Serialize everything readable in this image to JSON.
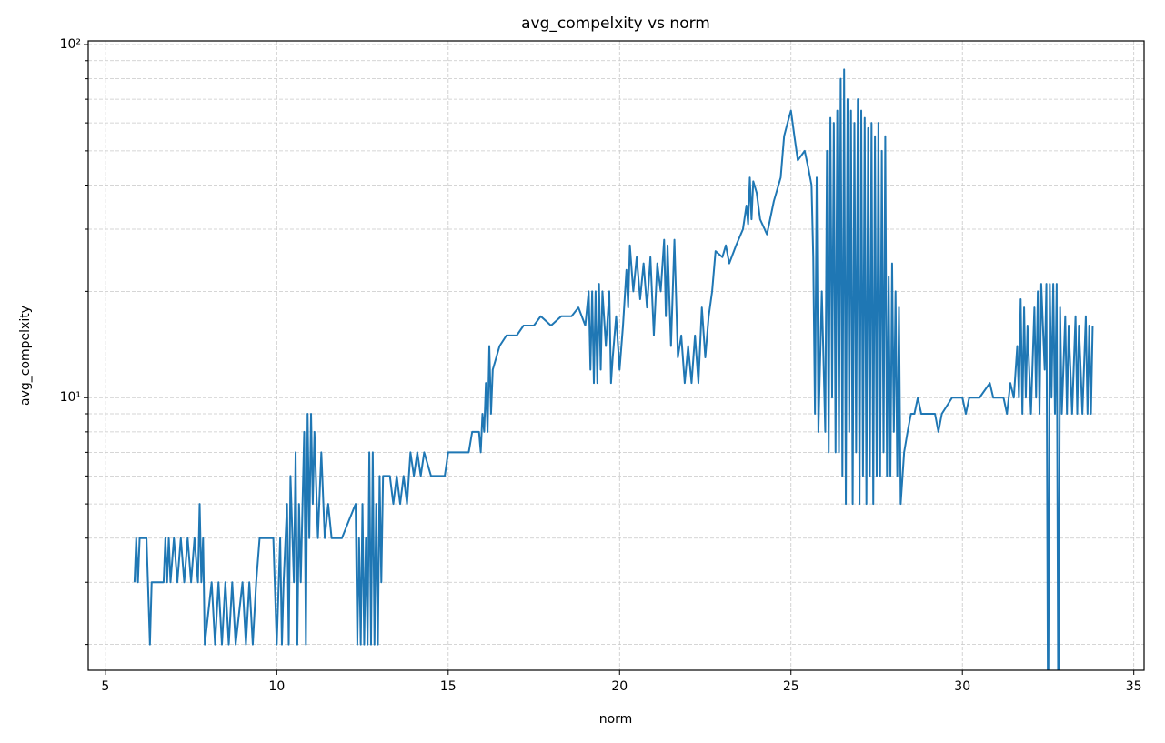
{
  "chart_data": {
    "type": "line",
    "title": "avg_compelxity vs norm",
    "x_label": "norm",
    "y_label": "avg_compelxity",
    "log_y": true,
    "grid": true,
    "xlim": [
      4.5,
      35.3
    ],
    "xticks": [
      5,
      10,
      15,
      20,
      25,
      30,
      35
    ],
    "ylim": [
      1.69,
      102.4
    ],
    "yticks": [
      {
        "value": 10,
        "label": "10¹"
      },
      {
        "value": 100,
        "label": "10²"
      }
    ],
    "minor_yticks": [
      2,
      3,
      4,
      5,
      6,
      7,
      8,
      9,
      20,
      30,
      40,
      50,
      60,
      70,
      80,
      90
    ],
    "series": [
      {
        "color": "#1f77b4",
        "x": [
          5.85,
          5.9,
          5.95,
          6.0,
          6.2,
          6.3,
          6.35,
          6.7,
          6.75,
          6.8,
          6.85,
          6.9,
          7.0,
          7.1,
          7.2,
          7.3,
          7.4,
          7.5,
          7.6,
          7.7,
          7.75,
          7.8,
          7.85,
          7.9,
          8.1,
          8.2,
          8.3,
          8.4,
          8.5,
          8.6,
          8.7,
          8.8,
          9.0,
          9.1,
          9.2,
          9.3,
          9.4,
          9.5,
          9.6,
          9.9,
          10.0,
          10.1,
          10.15,
          10.2,
          10.3,
          10.35,
          10.4,
          10.5,
          10.55,
          10.6,
          10.65,
          10.7,
          10.8,
          10.85,
          10.9,
          10.95,
          11.0,
          11.05,
          11.1,
          11.2,
          11.3,
          11.4,
          11.5,
          11.6,
          11.9,
          12.3,
          12.35,
          12.4,
          12.45,
          12.5,
          12.55,
          12.6,
          12.65,
          12.7,
          12.75,
          12.8,
          12.85,
          12.9,
          12.95,
          13.0,
          13.05,
          13.1,
          13.3,
          13.4,
          13.5,
          13.6,
          13.7,
          13.8,
          13.9,
          14.0,
          14.1,
          14.2,
          14.3,
          14.5,
          14.9,
          15.0,
          15.6,
          15.7,
          15.9,
          15.95,
          16.0,
          16.05,
          16.1,
          16.15,
          16.2,
          16.25,
          16.3,
          16.5,
          16.7,
          17.0,
          17.2,
          17.5,
          17.7,
          18.0,
          18.3,
          18.6,
          18.8,
          19.0,
          19.1,
          19.15,
          19.2,
          19.25,
          19.3,
          19.35,
          19.4,
          19.45,
          19.5,
          19.6,
          19.7,
          19.75,
          19.8,
          19.9,
          20.0,
          20.1,
          20.2,
          20.25,
          20.3,
          20.4,
          20.5,
          20.6,
          20.7,
          20.8,
          20.9,
          21.0,
          21.1,
          21.2,
          21.3,
          21.35,
          21.4,
          21.5,
          21.6,
          21.7,
          21.8,
          21.9,
          22.0,
          22.1,
          22.2,
          22.3,
          22.4,
          22.5,
          22.6,
          22.7,
          22.8,
          23.0,
          23.1,
          23.2,
          23.4,
          23.6,
          23.7,
          23.75,
          23.8,
          23.85,
          23.9,
          24.0,
          24.1,
          24.3,
          24.5,
          24.7,
          24.8,
          24.9,
          25.0,
          25.1,
          25.2,
          25.4,
          25.5,
          25.6,
          25.65,
          25.7,
          25.75,
          25.8,
          25.9,
          26.0,
          26.05,
          26.1,
          26.15,
          26.2,
          26.25,
          26.3,
          26.35,
          26.4,
          26.45,
          26.5,
          26.55,
          26.6,
          26.65,
          26.7,
          26.75,
          26.8,
          26.85,
          26.9,
          26.95,
          27.0,
          27.05,
          27.1,
          27.15,
          27.2,
          27.25,
          27.3,
          27.35,
          27.4,
          27.45,
          27.5,
          27.55,
          27.6,
          27.65,
          27.7,
          27.75,
          27.8,
          27.85,
          27.9,
          27.95,
          28.0,
          28.05,
          28.1,
          28.15,
          28.2,
          28.3,
          28.4,
          28.5,
          28.6,
          28.7,
          28.8,
          29.2,
          29.3,
          29.4,
          29.7,
          30.0,
          30.1,
          30.2,
          30.5,
          30.8,
          30.9,
          31.2,
          31.3,
          31.4,
          31.5,
          31.6,
          31.65,
          31.7,
          31.75,
          31.8,
          31.85,
          31.9,
          32.0,
          32.1,
          32.15,
          32.2,
          32.25,
          32.3,
          32.4,
          32.45,
          32.5,
          32.55,
          32.6,
          32.65,
          32.7,
          32.75,
          32.8,
          32.85,
          32.9,
          33.0,
          33.05,
          33.1,
          33.2,
          33.3,
          33.35,
          33.4,
          33.5,
          33.6,
          33.65,
          33.7,
          33.75,
          33.8
        ],
        "values": [
          3,
          4,
          3,
          4,
          4,
          2,
          3,
          3,
          4,
          3,
          4,
          3,
          4,
          3,
          4,
          3,
          4,
          3,
          4,
          3,
          5,
          3,
          4,
          2,
          3,
          2,
          3,
          2,
          3,
          2,
          3,
          2,
          3,
          2,
          3,
          2,
          3,
          4,
          4,
          4,
          2,
          4,
          2,
          3,
          5,
          2,
          6,
          3,
          7,
          2,
          5,
          3,
          8,
          2,
          9,
          4,
          9,
          5,
          8,
          4,
          7,
          4,
          5,
          4,
          4,
          5,
          2,
          4,
          2,
          5,
          2,
          4,
          2,
          7,
          2,
          7,
          2,
          5,
          2,
          6,
          3,
          6,
          6,
          5,
          6,
          5,
          6,
          5,
          7,
          6,
          7,
          6,
          7,
          6,
          6,
          7,
          7,
          8,
          8,
          7,
          9,
          8,
          11,
          8,
          14,
          9,
          12,
          14,
          15,
          15,
          16,
          16,
          17,
          16,
          17,
          17,
          18,
          16,
          20,
          12,
          20,
          11,
          20,
          11,
          21,
          12,
          20,
          14,
          20,
          11,
          13,
          17,
          12,
          16,
          23,
          18,
          27,
          20,
          25,
          19,
          24,
          18,
          25,
          15,
          24,
          20,
          28,
          17,
          27,
          14,
          28,
          13,
          15,
          11,
          14,
          11,
          15,
          11,
          18,
          13,
          17,
          20,
          26,
          25,
          27,
          24,
          27,
          30,
          35,
          31,
          42,
          32,
          41,
          38,
          32,
          29,
          36,
          42,
          55,
          60,
          65,
          55,
          47,
          50,
          45,
          40,
          25,
          9,
          42,
          8,
          20,
          8,
          50,
          7,
          62,
          10,
          60,
          7,
          65,
          7,
          80,
          6,
          85,
          5,
          70,
          8,
          65,
          5,
          60,
          7,
          70,
          5,
          65,
          6,
          62,
          5,
          58,
          6,
          60,
          5,
          55,
          6,
          60,
          6,
          50,
          7,
          55,
          6,
          22,
          6,
          24,
          8,
          20,
          6,
          18,
          5,
          7,
          8,
          9,
          9,
          10,
          9,
          9,
          8,
          9,
          10,
          10,
          9,
          10,
          10,
          11,
          10,
          10,
          9,
          11,
          10,
          14,
          10,
          19,
          9,
          18,
          10,
          16,
          9,
          18,
          10,
          20,
          9,
          21,
          12,
          21,
          1,
          21,
          10,
          21,
          9,
          21,
          1,
          18,
          9,
          17,
          9,
          16,
          9,
          17,
          9,
          16,
          9,
          17,
          9,
          16,
          9,
          16
        ]
      }
    ]
  }
}
